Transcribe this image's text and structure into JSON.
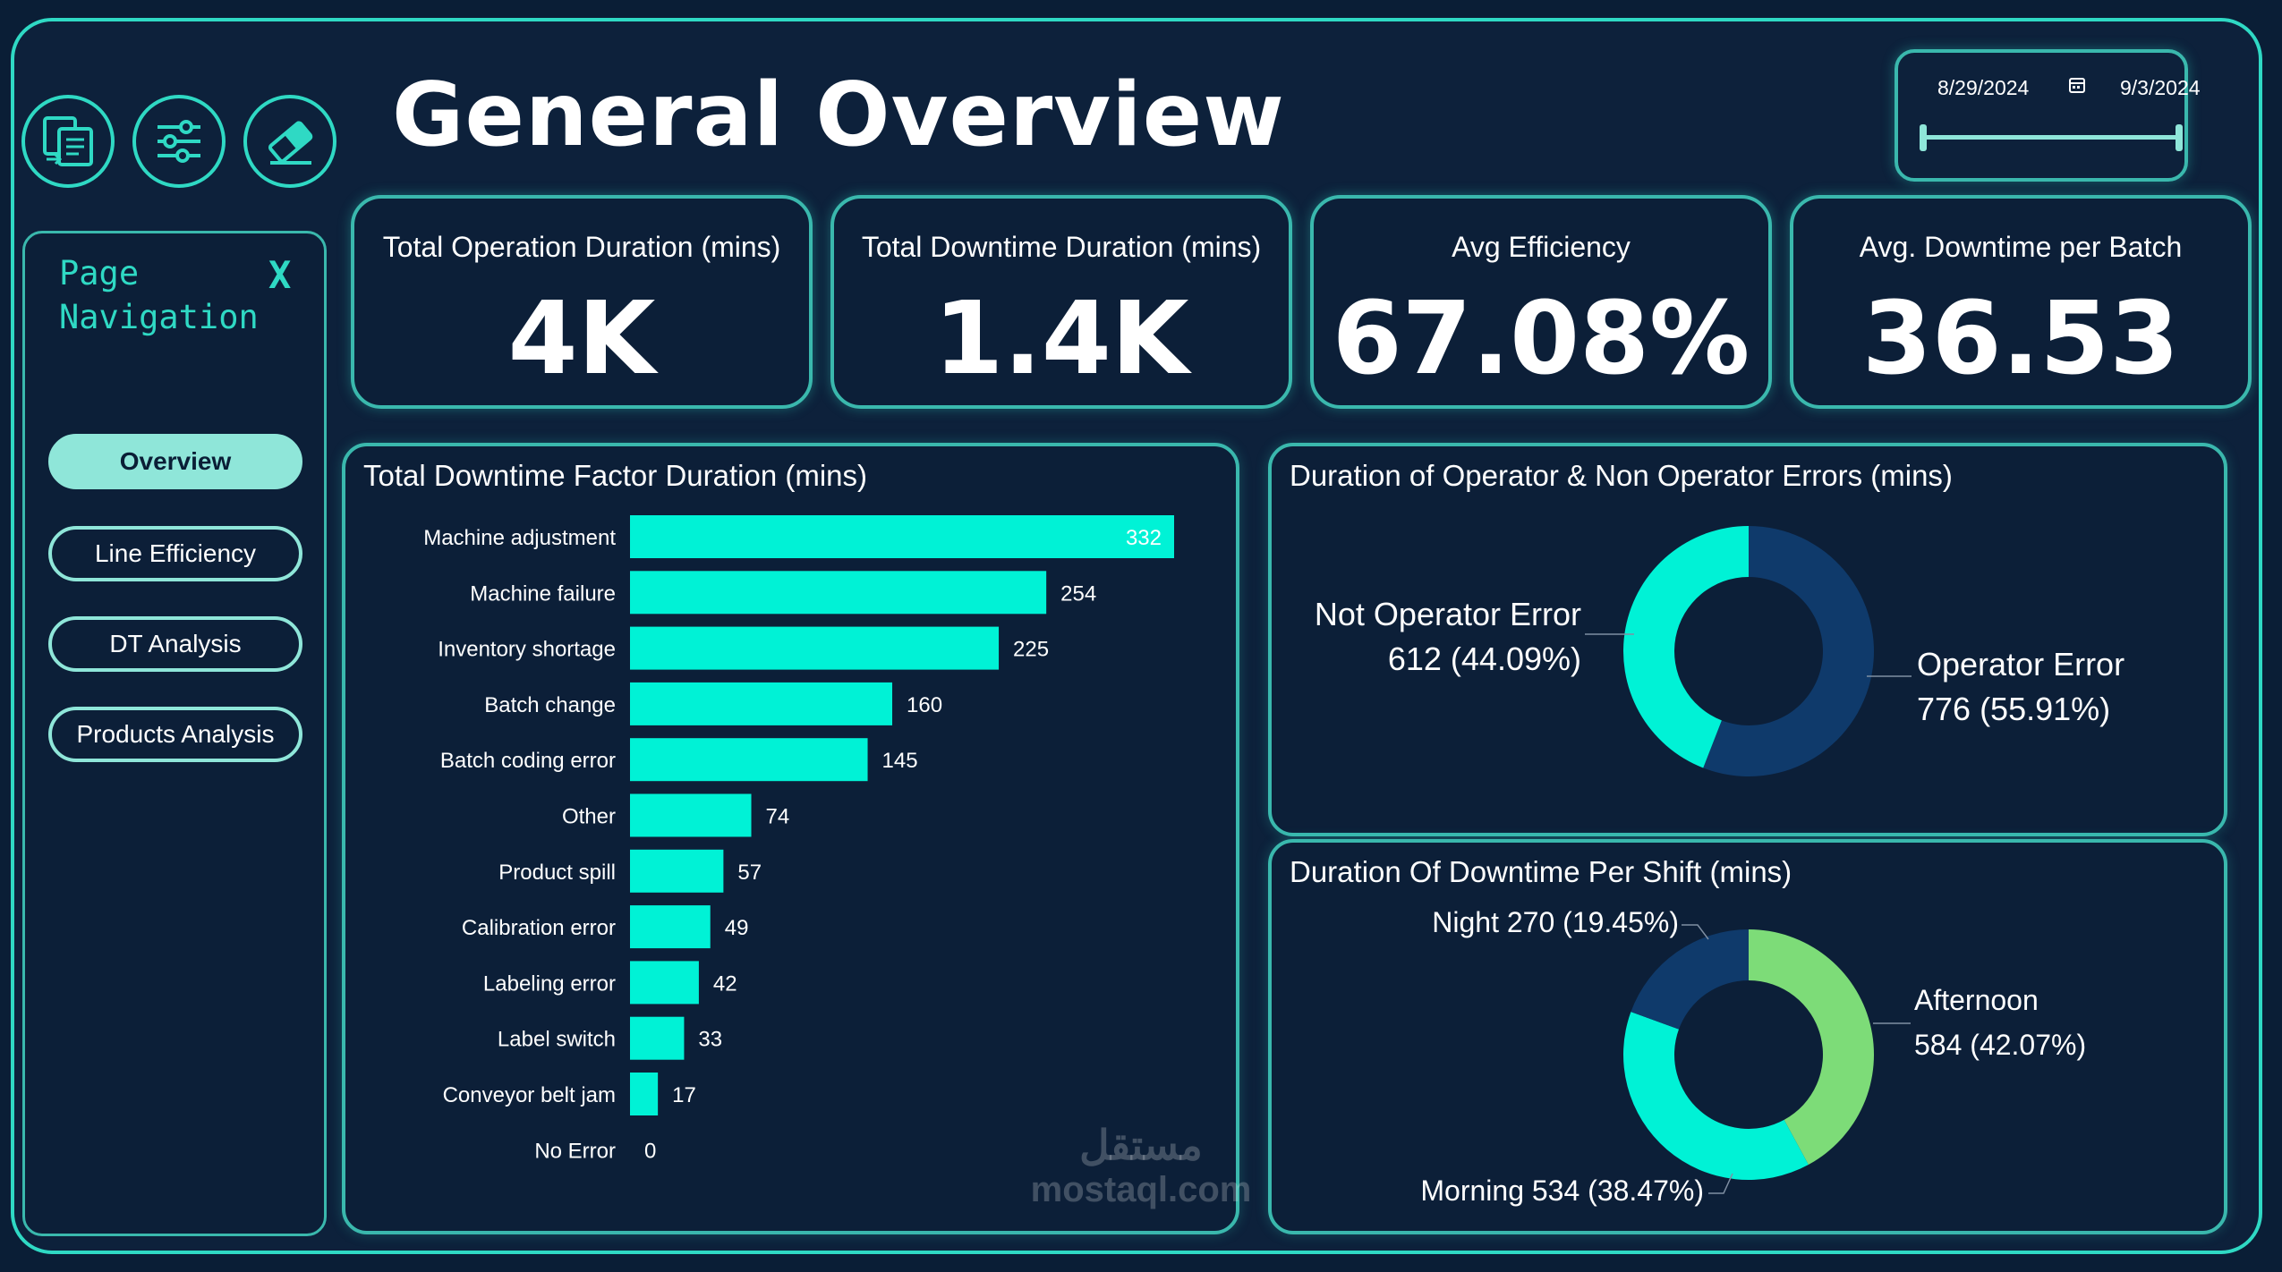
{
  "header": {
    "title": "General Overview"
  },
  "toolbar": {
    "icons": [
      "report-switch-icon",
      "filter-sliders-icon",
      "eraser-icon"
    ]
  },
  "date_slicer": {
    "start": "8/29/2024",
    "end": "9/3/2024",
    "calendar_icon": "calendar-icon"
  },
  "nav": {
    "title": "Page\nNavigation",
    "close": "X",
    "items": [
      {
        "label": "Overview",
        "active": true
      },
      {
        "label": "Line Efficiency",
        "active": false
      },
      {
        "label": "DT Analysis",
        "active": false
      },
      {
        "label": "Products Analysis",
        "active": false
      }
    ]
  },
  "kpis": [
    {
      "label": "Total Operation Duration (mins)",
      "value": "4K"
    },
    {
      "label": "Total Downtime Duration (mins)",
      "value": "1.4K"
    },
    {
      "label": "Avg Efficiency",
      "value": "67.08%"
    },
    {
      "label": "Avg. Downtime per Batch",
      "value": "36.53"
    }
  ],
  "watermark": {
    "line1": "مستقل",
    "line2": "mostaql.com"
  },
  "colors": {
    "accent": "#2fd9c4",
    "bar": "#00f2d6",
    "navy": "#0f3a6b",
    "green": "#7ddc78",
    "background": "#0d213b"
  },
  "chart_data": [
    {
      "type": "bar",
      "orientation": "horizontal",
      "title": "Total Downtime Factor Duration (mins)",
      "categories": [
        "Machine adjustment",
        "Machine failure",
        "Inventory shortage",
        "Batch change",
        "Batch coding error",
        "Other",
        "Product spill",
        "Calibration error",
        "Labeling error",
        "Label switch",
        "Conveyor belt jam",
        "No Error"
      ],
      "values": [
        332,
        254,
        225,
        160,
        145,
        74,
        57,
        49,
        42,
        33,
        17,
        0
      ],
      "xlim": [
        0,
        332
      ],
      "legend": "none",
      "grid": false
    },
    {
      "type": "pie",
      "variant": "donut",
      "title": "Duration of Operator & Non Operator Errors (mins)",
      "slices": [
        {
          "name": "Operator Error",
          "value": 776,
          "label": "776 (55.91%)",
          "color": "#0f3a6b"
        },
        {
          "name": "Not Operator Error",
          "value": 612,
          "label": "612 (44.09%)",
          "color": "#00f2d6"
        }
      ]
    },
    {
      "type": "pie",
      "variant": "donut",
      "title": "Duration Of Downtime Per Shift (mins)",
      "slices": [
        {
          "name": "Afternoon",
          "value": 584,
          "label": "584 (42.07%)",
          "color": "#7ddc78"
        },
        {
          "name": "Morning",
          "value": 534,
          "label": "534 (38.47%)",
          "color": "#00f2d6"
        },
        {
          "name": "Night",
          "value": 270,
          "label": "270 (19.45%)",
          "color": "#0f3a6b"
        }
      ]
    }
  ]
}
